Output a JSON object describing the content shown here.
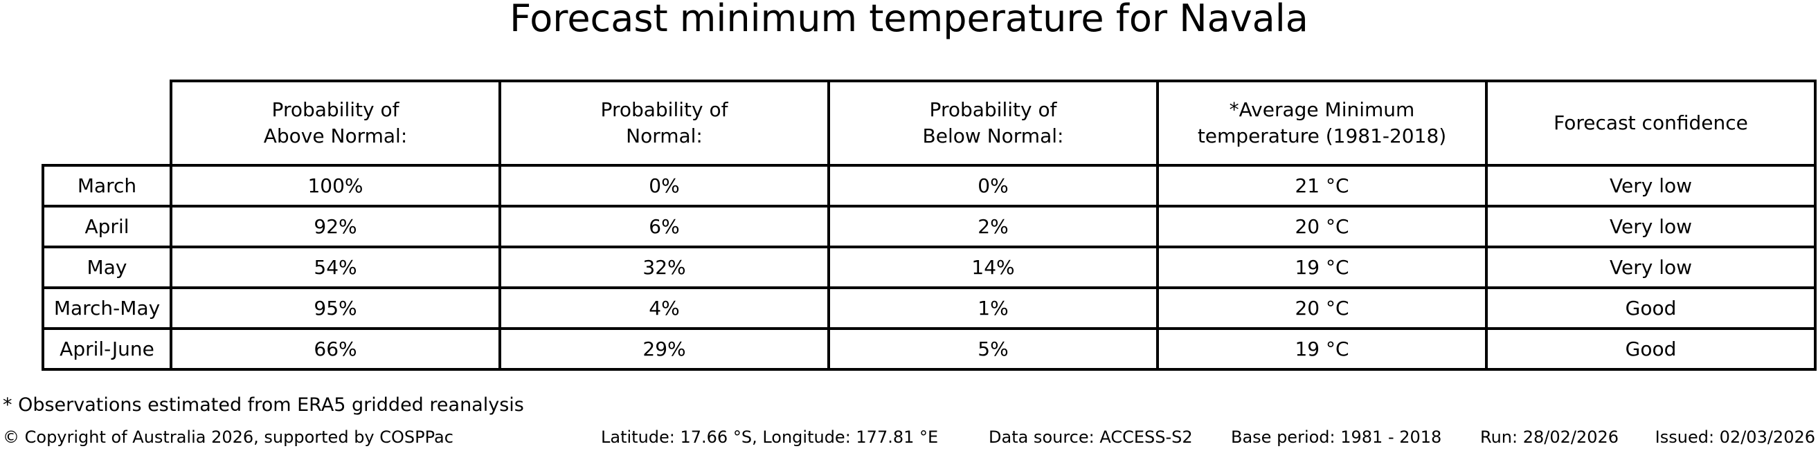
{
  "title": "Forecast minimum temperature for Navala",
  "table": {
    "columns": [
      "Probability of\nAbove Normal:",
      "Probability of\nNormal:",
      "Probability of\nBelow Normal:",
      "*Average Minimum\ntemperature (1981-2018)",
      "Forecast confidence"
    ],
    "rows": [
      {
        "label": "March",
        "above": "100%",
        "normal": "0%",
        "below": "0%",
        "avg_min_temp": "21 °C",
        "confidence": "Very low"
      },
      {
        "label": "April",
        "above": "92%",
        "normal": "6%",
        "below": "2%",
        "avg_min_temp": "20 °C",
        "confidence": "Very low"
      },
      {
        "label": "May",
        "above": "54%",
        "normal": "32%",
        "below": "14%",
        "avg_min_temp": "19 °C",
        "confidence": "Very low"
      },
      {
        "label": "March-May",
        "above": "95%",
        "normal": "4%",
        "below": "1%",
        "avg_min_temp": "20 °C",
        "confidence": "Good"
      },
      {
        "label": "April-June",
        "above": "66%",
        "normal": "29%",
        "below": "5%",
        "avg_min_temp": "19 °C",
        "confidence": "Good"
      }
    ]
  },
  "footnote": "* Observations estimated from ERA5 gridded reanalysis",
  "footer": {
    "copyright": "© Copyright of Australia 2026, supported by COSPPac",
    "location": "Latitude: 17.66 °S, Longitude: 177.81 °E",
    "data_source": "Data source: ACCESS-S2",
    "base_period": "Base period: 1981 - 2018",
    "run": "Run: 28/02/2026",
    "issued": "Issued: 02/03/2026"
  },
  "colors": {
    "background": "#ffffff",
    "border": "#000000",
    "text": "#000000"
  },
  "chart_data": {
    "type": "table",
    "title": "Forecast minimum temperature for Navala",
    "columns": [
      "Probability of Above Normal:",
      "Probability of Normal:",
      "Probability of Below Normal:",
      "*Average Minimum temperature (1981-2018)",
      "Forecast confidence"
    ],
    "row_labels": [
      "March",
      "April",
      "May",
      "March-May",
      "April-June"
    ],
    "cells": [
      [
        "100%",
        "0%",
        "0%",
        "21 °C",
        "Very low"
      ],
      [
        "92%",
        "6%",
        "2%",
        "20 °C",
        "Very low"
      ],
      [
        "54%",
        "32%",
        "14%",
        "19 °C",
        "Very low"
      ],
      [
        "95%",
        "4%",
        "1%",
        "20 °C",
        "Good"
      ],
      [
        "66%",
        "29%",
        "5%",
        "19 °C",
        "Good"
      ]
    ],
    "probabilities_above_normal": [
      100,
      92,
      54,
      95,
      66
    ],
    "probabilities_normal": [
      0,
      6,
      32,
      4,
      29
    ],
    "probabilities_below_normal": [
      0,
      2,
      14,
      1,
      5
    ],
    "average_minimum_temperature_c": [
      21,
      20,
      19,
      20,
      19
    ],
    "forecast_confidence": [
      "Very low",
      "Very low",
      "Very low",
      "Good",
      "Good"
    ]
  }
}
